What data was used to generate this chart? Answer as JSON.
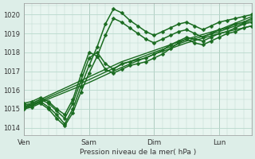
{
  "background_color": "#ddeee8",
  "plot_bg_color": "#e8f5f0",
  "grid_color": "#b8d8cc",
  "line_color": "#1a6b20",
  "marker_color": "#1a6b20",
  "xlabel": "Pression niveau de la mer( hPa )",
  "ylim": [
    1013.6,
    1020.6
  ],
  "yticks": [
    1014,
    1015,
    1016,
    1017,
    1018,
    1019,
    1020
  ],
  "day_labels": [
    "Ven",
    "Sam",
    "Dim",
    "Lun"
  ],
  "day_positions": [
    0,
    48,
    96,
    144
  ],
  "total_hours": 168,
  "series": [
    {
      "x": [
        0,
        24,
        48,
        72,
        96,
        120,
        144,
        168
      ],
      "y": [
        1015.1,
        1015.9,
        1016.7,
        1017.5,
        1018.1,
        1018.7,
        1019.2,
        1019.9
      ],
      "has_markers": false,
      "linewidth": 1.0
    },
    {
      "x": [
        0,
        24,
        48,
        72,
        96,
        120,
        144,
        168
      ],
      "y": [
        1015.0,
        1015.7,
        1016.4,
        1017.2,
        1017.9,
        1018.5,
        1019.0,
        1019.4
      ],
      "has_markers": false,
      "linewidth": 1.0
    },
    {
      "x": [
        0,
        24,
        48,
        72,
        96,
        120,
        144,
        168
      ],
      "y": [
        1015.05,
        1015.8,
        1016.55,
        1017.35,
        1018.0,
        1018.6,
        1019.1,
        1019.7
      ],
      "has_markers": false,
      "linewidth": 1.0
    },
    {
      "x": [
        0,
        6,
        12,
        18,
        24,
        30,
        36,
        42,
        48,
        54,
        60,
        66,
        72,
        78,
        84,
        90,
        96,
        102,
        108,
        114,
        120,
        126,
        132,
        138,
        144,
        150,
        156,
        162,
        168
      ],
      "y": [
        1015.1,
        1015.2,
        1015.4,
        1015.1,
        1014.7,
        1014.2,
        1015.0,
        1016.2,
        1017.3,
        1018.3,
        1019.5,
        1020.3,
        1020.1,
        1019.7,
        1019.4,
        1019.1,
        1018.9,
        1019.1,
        1019.3,
        1019.5,
        1019.6,
        1019.4,
        1019.2,
        1019.4,
        1019.6,
        1019.7,
        1019.8,
        1019.9,
        1020.0
      ],
      "has_markers": true,
      "linewidth": 1.1
    },
    {
      "x": [
        0,
        6,
        12,
        18,
        24,
        30,
        36,
        42,
        48,
        54,
        60,
        66,
        72,
        78,
        84,
        90,
        96,
        102,
        108,
        114,
        120,
        126,
        132,
        138,
        144,
        150,
        156,
        162,
        168
      ],
      "y": [
        1015.0,
        1015.1,
        1015.3,
        1015.0,
        1014.5,
        1014.1,
        1014.8,
        1015.9,
        1016.9,
        1017.8,
        1018.9,
        1019.8,
        1019.6,
        1019.3,
        1019.0,
        1018.7,
        1018.5,
        1018.7,
        1018.9,
        1019.1,
        1019.2,
        1019.0,
        1018.8,
        1019.0,
        1019.2,
        1019.3,
        1019.5,
        1019.6,
        1019.8
      ],
      "has_markers": true,
      "linewidth": 1.1
    },
    {
      "x": [
        0,
        6,
        12,
        18,
        24,
        30,
        36,
        42,
        48,
        54,
        60,
        66,
        72,
        78,
        84,
        90,
        96,
        102,
        108,
        114,
        120,
        126,
        132,
        138,
        144,
        150,
        156,
        162,
        168
      ],
      "y": [
        1015.2,
        1015.3,
        1015.5,
        1015.3,
        1014.9,
        1014.5,
        1015.3,
        1016.5,
        1017.7,
        1018.0,
        1017.4,
        1017.1,
        1017.4,
        1017.5,
        1017.6,
        1017.7,
        1017.9,
        1018.1,
        1018.4,
        1018.6,
        1018.8,
        1018.7,
        1018.6,
        1018.8,
        1019.0,
        1019.1,
        1019.3,
        1019.5,
        1019.6
      ],
      "has_markers": true,
      "linewidth": 1.1
    },
    {
      "x": [
        0,
        6,
        12,
        18,
        24,
        30,
        36,
        42,
        48,
        54,
        60,
        66,
        72,
        78,
        84,
        90,
        96,
        102,
        108,
        114,
        120,
        126,
        132,
        138,
        144,
        150,
        156,
        162,
        168
      ],
      "y": [
        1015.3,
        1015.4,
        1015.6,
        1015.4,
        1015.0,
        1014.7,
        1015.5,
        1016.8,
        1018.0,
        1017.8,
        1017.1,
        1016.9,
        1017.1,
        1017.3,
        1017.4,
        1017.5,
        1017.7,
        1017.9,
        1018.2,
        1018.5,
        1018.7,
        1018.5,
        1018.4,
        1018.6,
        1018.8,
        1019.0,
        1019.1,
        1019.3,
        1019.4
      ],
      "has_markers": true,
      "linewidth": 1.1
    }
  ]
}
